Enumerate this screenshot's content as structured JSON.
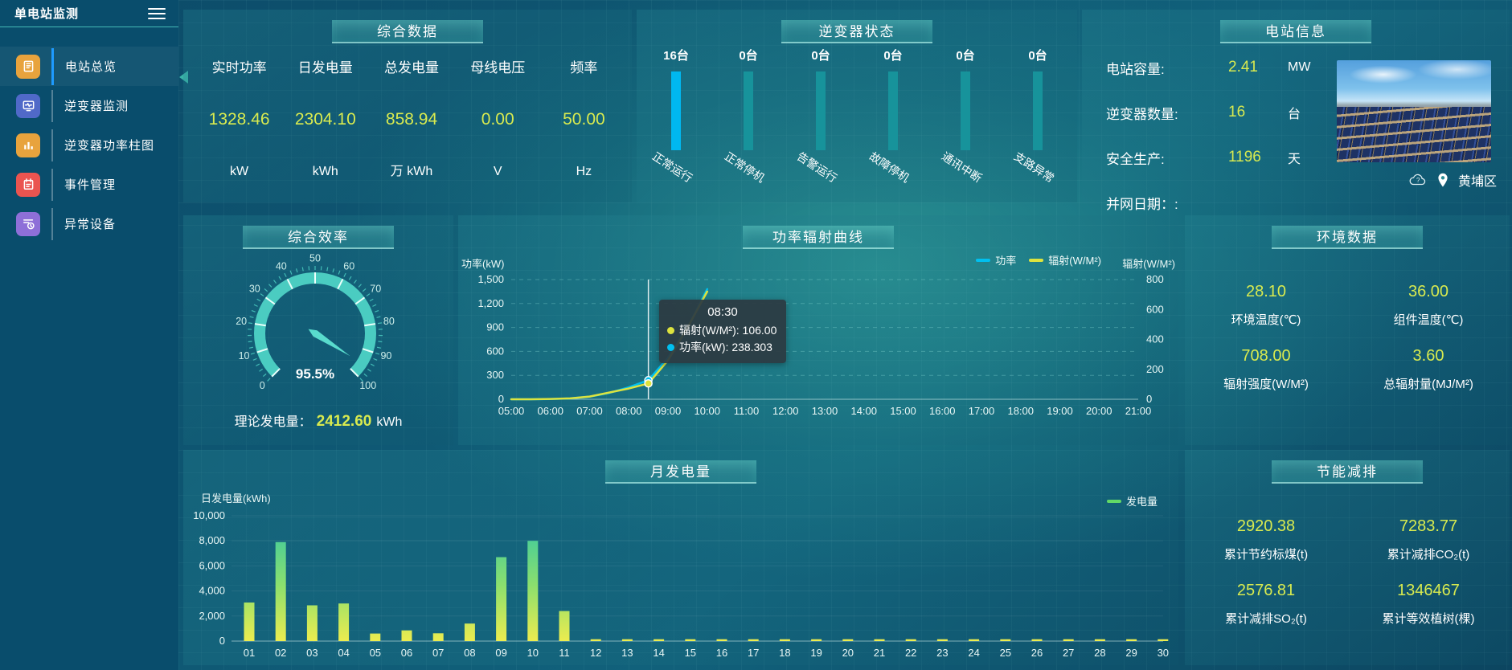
{
  "accent_colors": {
    "value_yellow": "#d8ea4f",
    "teal": "#4ed2c5",
    "panel_title_bg": "#2a8c94"
  },
  "sidebar": {
    "title": "单电站监测",
    "items": [
      {
        "label": "电站总览",
        "icon": "overview-icon",
        "color": "#e8a33d",
        "active": true
      },
      {
        "label": "逆变器监测",
        "icon": "inverter-monitor-icon",
        "color": "#5069c8",
        "active": false
      },
      {
        "label": "逆变器功率柱图",
        "icon": "inverter-power-bars-icon",
        "color": "#e8a33d",
        "active": false
      },
      {
        "label": "事件管理",
        "icon": "event-management-icon",
        "color": "#ea5450",
        "active": false
      },
      {
        "label": "异常设备",
        "icon": "abnormal-device-icon",
        "color": "#8e6fd8",
        "active": false
      }
    ]
  },
  "summary": {
    "title": "综合数据",
    "metrics": [
      {
        "label": "实时功率",
        "value": "1328.46",
        "unit": "kW"
      },
      {
        "label": "日发电量",
        "value": "2304.10",
        "unit": "kWh"
      },
      {
        "label": "总发电量",
        "value": "858.94",
        "unit": "万 kWh"
      },
      {
        "label": "母线电压",
        "value": "0.00",
        "unit": "V"
      },
      {
        "label": "频率",
        "value": "50.00",
        "unit": "Hz"
      }
    ]
  },
  "inverter_status": {
    "title": "逆变器状态",
    "unit_suffix": "台",
    "colors": {
      "highlight": "#00b8f0",
      "normal": "#17939b"
    },
    "items": [
      {
        "count": 16,
        "label": "正常运行",
        "highlight": true
      },
      {
        "count": 0,
        "label": "正常停机",
        "highlight": false
      },
      {
        "count": 0,
        "label": "告警运行",
        "highlight": false
      },
      {
        "count": 0,
        "label": "故障停机",
        "highlight": false
      },
      {
        "count": 0,
        "label": "通讯中断",
        "highlight": false
      },
      {
        "count": 0,
        "label": "支路异常",
        "highlight": false
      }
    ]
  },
  "station_info": {
    "title": "电站信息",
    "rows": [
      {
        "label": "电站容量:",
        "value": "2.41",
        "unit": "MW"
      },
      {
        "label": "逆变器数量:",
        "value": "16",
        "unit": "台"
      },
      {
        "label": "安全生产:",
        "value": "1196",
        "unit": "天"
      },
      {
        "label": "并网日期：:",
        "value": "",
        "unit": ""
      }
    ],
    "weather_icon": "cloud-question-icon",
    "location_icon": "location-pin-icon",
    "location": "黄埔区"
  },
  "efficiency": {
    "title": "综合效率",
    "value": 95.5,
    "value_label": "95.5%",
    "min": 0,
    "max": 100,
    "ticks": [
      0,
      10,
      20,
      30,
      40,
      50,
      60,
      70,
      80,
      90,
      100
    ],
    "theory_label": "理论发电量：",
    "theory_value": "2412.60",
    "theory_unit": "kWh"
  },
  "environment": {
    "title": "环境数据",
    "metrics": [
      {
        "value": "28.10",
        "label": "环境温度(℃)"
      },
      {
        "value": "36.00",
        "label": "组件温度(℃)"
      },
      {
        "value": "708.00",
        "label": "辐射强度(W/M²)"
      },
      {
        "value": "3.60",
        "label": "总辐射量(MJ/M²)"
      }
    ]
  },
  "saving": {
    "title": "节能减排",
    "metrics": [
      {
        "value": "2920.38",
        "label": "累计节约标煤(t)"
      },
      {
        "value": "7283.77",
        "label": "累计减排CO₂(t)"
      },
      {
        "value": "2576.81",
        "label": "累计减排SO₂(t)"
      },
      {
        "value": "1346467",
        "label": "累计等效植树(棵)"
      }
    ]
  },
  "chart_data": [
    {
      "id": "power_radiation",
      "type": "line",
      "title": "功率辐射曲线",
      "ylabel_left": "功率(kW)",
      "ylabel_right": "辐射(W/M²)",
      "x_ticks": [
        "05:00",
        "06:00",
        "07:00",
        "08:00",
        "09:00",
        "10:00",
        "11:00",
        "12:00",
        "13:00",
        "14:00",
        "15:00",
        "16:00",
        "17:00",
        "18:00",
        "19:00",
        "20:00",
        "21:00"
      ],
      "x_range_hours": [
        5,
        21
      ],
      "y_left_ticks": [
        "0",
        "300",
        "600",
        "900",
        "1,200",
        "1,500"
      ],
      "y_left_max": 1500,
      "y_right_ticks": [
        "0",
        "200",
        "400",
        "600",
        "800"
      ],
      "y_right_max": 800,
      "grid": "dashed",
      "legend": [
        {
          "label": "功率",
          "color": "#00c0f0"
        },
        {
          "label": "辐射(W/M²)",
          "color": "#dde33e"
        }
      ],
      "series": [
        {
          "name": "功率",
          "axis": "left",
          "color": "#00c0f0",
          "x_hours": [
            5,
            5.5,
            6,
            6.5,
            7,
            7.5,
            8,
            8.5,
            9,
            9.5,
            10
          ],
          "values": [
            0,
            0,
            3,
            10,
            32,
            80,
            150,
            238.303,
            520,
            900,
            1380
          ]
        },
        {
          "name": "辐射",
          "axis": "right",
          "color": "#dde33e",
          "x_hours": [
            5,
            5.5,
            6,
            6.5,
            7,
            7.5,
            8,
            8.5,
            9,
            9.5,
            10
          ],
          "values": [
            0,
            0,
            2,
            6,
            18,
            45,
            72,
            106,
            260,
            480,
            720
          ]
        }
      ],
      "tooltip": {
        "time": "08:30",
        "x_hour": 8.5,
        "rows": [
          {
            "dot": "#dde33e",
            "text": "辐射(W/M²): 106.00"
          },
          {
            "dot": "#00c0f0",
            "text": "功率(kW): 238.303"
          }
        ]
      }
    },
    {
      "id": "monthly_generation",
      "type": "bar",
      "title": "月发电量",
      "ylabel": "日发电量(kWh)",
      "legend": [
        {
          "label": "发电量",
          "color": "#62d966"
        }
      ],
      "categories": [
        "01",
        "02",
        "03",
        "04",
        "05",
        "06",
        "07",
        "08",
        "09",
        "10",
        "11",
        "12",
        "13",
        "14",
        "15",
        "16",
        "17",
        "18",
        "19",
        "20",
        "21",
        "22",
        "23",
        "24",
        "25",
        "26",
        "27",
        "28",
        "29",
        "30"
      ],
      "values": [
        3080,
        7900,
        2850,
        3000,
        600,
        850,
        620,
        1400,
        6700,
        8000,
        2400,
        150,
        150,
        150,
        150,
        150,
        150,
        150,
        150,
        150,
        150,
        150,
        150,
        150,
        150,
        150,
        150,
        150,
        150,
        150
      ],
      "y_ticks": [
        "0",
        "2,000",
        "4,000",
        "6,000",
        "8,000",
        "10,000"
      ],
      "y_max": 10000,
      "bar_gradient": {
        "top": "#2fc6a8",
        "mid": "#8adf6e",
        "bottom": "#ecec4f"
      }
    }
  ]
}
